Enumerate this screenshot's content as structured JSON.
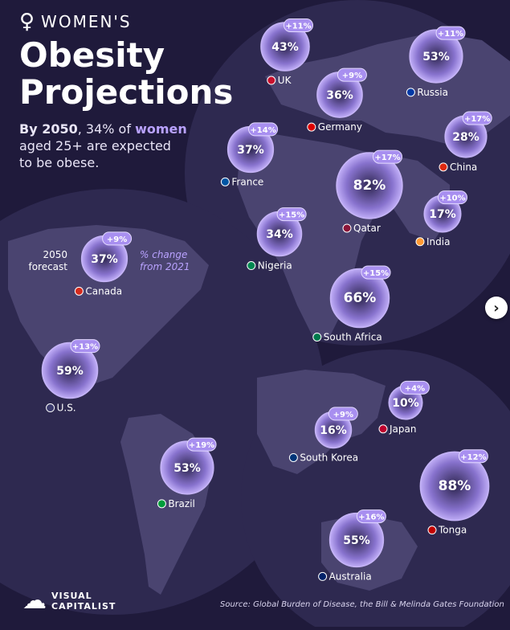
{
  "header": {
    "kicker": "WOMEN'S",
    "title_line1": "Obesity",
    "title_line2": "Projections",
    "subtitle_bold": "By 2050",
    "subtitle_1": ", 34% of ",
    "subtitle_highlight": "women",
    "subtitle_2": "aged 25+ are expected",
    "subtitle_3": "to be obese."
  },
  "legend": {
    "forecast_label_1": "2050",
    "forecast_label_2": "forecast",
    "change_label_1": "% change",
    "change_label_2": "from 2021"
  },
  "footer": {
    "brand_line1": "VISUAL",
    "brand_line2": "CAPITALIST",
    "source": "Source: Global Burden of Disease, the Bill & Melinda Gates Foundation"
  },
  "chart_data": {
    "type": "bubble-map",
    "title": "Women's Obesity Projections",
    "series": [
      {
        "name": "2050 forecast",
        "unit": "%"
      },
      {
        "name": "% change from 2021",
        "unit": "%"
      }
    ],
    "points": [
      {
        "country": "UK",
        "forecast": "43%",
        "change": "+11%",
        "value": 43
      },
      {
        "country": "Russia",
        "forecast": "53%",
        "change": "+11%",
        "value": 53
      },
      {
        "country": "Germany",
        "forecast": "36%",
        "change": "+9%",
        "value": 36
      },
      {
        "country": "France",
        "forecast": "37%",
        "change": "+14%",
        "value": 37
      },
      {
        "country": "China",
        "forecast": "28%",
        "change": "+17%",
        "value": 28
      },
      {
        "country": "Qatar",
        "forecast": "82%",
        "change": "+17%",
        "value": 82
      },
      {
        "country": "India",
        "forecast": "17%",
        "change": "+10%",
        "value": 17
      },
      {
        "country": "Nigeria",
        "forecast": "34%",
        "change": "+15%",
        "value": 34
      },
      {
        "country": "South Africa",
        "forecast": "66%",
        "change": "+15%",
        "value": 66
      },
      {
        "country": "Canada",
        "forecast": "37%",
        "change": "+9%",
        "value": 37
      },
      {
        "country": "U.S.",
        "forecast": "59%",
        "change": "+13%",
        "value": 59
      },
      {
        "country": "Brazil",
        "forecast": "53%",
        "change": "+19%",
        "value": 53
      },
      {
        "country": "Japan",
        "forecast": "10%",
        "change": "+4%",
        "value": 10
      },
      {
        "country": "South Korea",
        "forecast": "16%",
        "change": "+9%",
        "value": 16
      },
      {
        "country": "Tonga",
        "forecast": "88%",
        "change": "+12%",
        "value": 88
      },
      {
        "country": "Australia",
        "forecast": "55%",
        "change": "+16%",
        "value": 55
      }
    ]
  },
  "colors": {
    "background": "#1f1a3b",
    "globe": "#2f2a52",
    "land": "#4a4470",
    "bubble": "#8f79d8",
    "bubble_edge": "#cdbbff",
    "change_badge": "#a88ff0",
    "accent_text": "#b9a2ff"
  }
}
